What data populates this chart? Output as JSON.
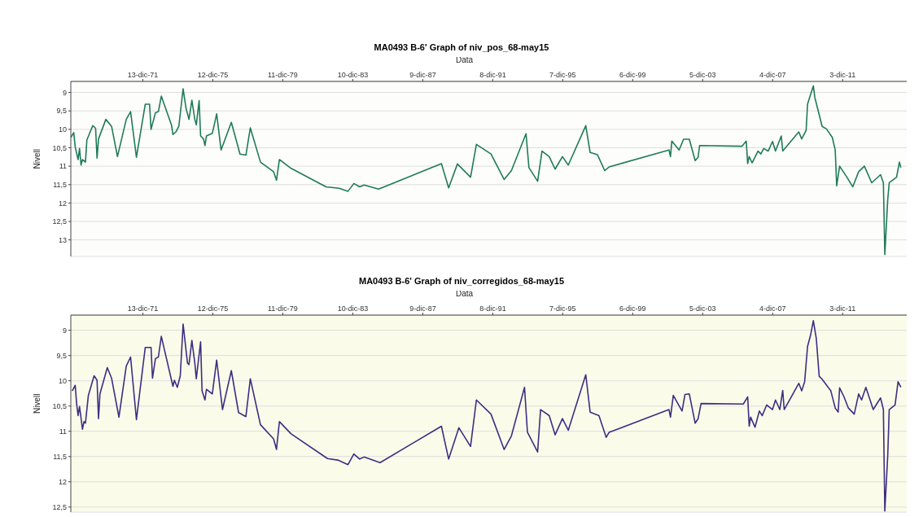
{
  "chart_data": [
    {
      "type": "line",
      "title": "MA0493 B-6' Graph of niv_pos_68-may15",
      "xlabel": "Data",
      "ylabel": "Nivell",
      "grid": "y",
      "legend": false,
      "xlim": [
        "1967-11",
        "2015-08"
      ],
      "ylim": [
        13.45,
        8.7
      ],
      "xticks": [
        {
          "value": "1971-12-13",
          "label": "13-dic-71"
        },
        {
          "value": "1975-12-12",
          "label": "12-dic-75"
        },
        {
          "value": "1979-12-11",
          "label": "11-dic-79"
        },
        {
          "value": "1983-12-10",
          "label": "10-dic-83"
        },
        {
          "value": "1987-12-09",
          "label": "9-dic-87"
        },
        {
          "value": "1991-12-08",
          "label": "8-dic-91"
        },
        {
          "value": "1995-12-07",
          "label": "7-dic-95"
        },
        {
          "value": "1999-12-06",
          "label": "6-dic-99"
        },
        {
          "value": "2003-12-05",
          "label": "5-dic-03"
        },
        {
          "value": "2007-12-04",
          "label": "4-dic-07"
        },
        {
          "value": "2011-12-03",
          "label": "3-dic-11"
        }
      ],
      "yticks": [
        9,
        {
          "value": 9.5,
          "label": "9,5"
        },
        10,
        {
          "value": 10.5,
          "label": "10,5"
        },
        11,
        {
          "value": 11.5,
          "label": "11,5"
        },
        12,
        {
          "value": 12.5,
          "label": "12,5"
        },
        13
      ],
      "series": [
        {
          "color": "#1f7a5c",
          "x": [
            "1967-11",
            "1968-01",
            "1968-02",
            "1968-04",
            "1968-05",
            "1968-06",
            "1968-07",
            "1968-09",
            "1968-10",
            "1969-02",
            "1969-04",
            "1969-05",
            "1969-06",
            "1969-11",
            "1970-03",
            "1970-07",
            "1971-01",
            "1971-04",
            "1971-08",
            "1972-02",
            "1972-05",
            "1972-06",
            "1972-09",
            "1972-11",
            "1973-01",
            "1973-08",
            "1973-09",
            "1973-11",
            "1974-01",
            "1974-04",
            "1974-06",
            "1974-08",
            "1974-10",
            "1974-12",
            "1975-01",
            "1975-03",
            "1975-04",
            "1975-06",
            "1975-07",
            "1975-08",
            "1975-12",
            "1976-03",
            "1976-06",
            "1977-01",
            "1977-07",
            "1977-11",
            "1978-02",
            "1978-09",
            "1979-06",
            "1979-08",
            "1979-10",
            "1980-06",
            "1982-06",
            "1983-03",
            "1983-09",
            "1984-01",
            "1984-05",
            "1984-08",
            "1985-06",
            "1989-01",
            "1989-06",
            "1989-12",
            "1990-09",
            "1991-01",
            "1991-11",
            "1992-08",
            "1993-01",
            "1993-11",
            "1994-01",
            "1994-07",
            "1994-10",
            "1995-03",
            "1995-07",
            "1995-12",
            "1996-04",
            "1997-04",
            "1997-07",
            "1997-12",
            "1998-05",
            "1998-08",
            "2002-01",
            "2002-02",
            "2002-03",
            "2002-08",
            "2002-11",
            "2003-03",
            "2003-07",
            "2003-09",
            "2003-10",
            "2006-03",
            "2006-06",
            "2006-07",
            "2006-08",
            "2006-10",
            "2007-02",
            "2007-04",
            "2007-06",
            "2007-09",
            "2007-12",
            "2008-02",
            "2008-06",
            "2008-07",
            "2009-06",
            "2009-08",
            "2009-11",
            "2009-12",
            "2010-02",
            "2010-04",
            "2010-05",
            "2010-10",
            "2011-01",
            "2011-05",
            "2011-07",
            "2011-08",
            "2011-10",
            "2012-03",
            "2012-07",
            "2012-11",
            "2013-03",
            "2013-08",
            "2014-02",
            "2014-04",
            "2014-05",
            "2014-07",
            "2014-08",
            "2015-01",
            "2015-03",
            "2015-04"
          ],
          "values": [
            10.22,
            10.09,
            10.48,
            10.82,
            10.52,
            10.97,
            10.82,
            10.89,
            10.29,
            9.9,
            9.97,
            10.78,
            10.26,
            9.73,
            9.92,
            10.74,
            9.73,
            9.52,
            10.76,
            9.32,
            9.32,
            10.0,
            9.55,
            9.52,
            9.1,
            9.88,
            10.14,
            10.07,
            9.92,
            8.9,
            9.43,
            9.73,
            9.21,
            9.73,
            9.88,
            9.22,
            10.18,
            10.26,
            10.44,
            10.18,
            10.11,
            9.58,
            10.56,
            9.81,
            10.67,
            10.7,
            9.96,
            10.89,
            11.15,
            11.38,
            10.82,
            11.06,
            11.56,
            11.6,
            11.68,
            11.47,
            11.56,
            11.51,
            11.62,
            10.93,
            11.59,
            10.94,
            11.3,
            10.41,
            10.67,
            11.36,
            11.12,
            10.12,
            11.04,
            11.41,
            10.59,
            10.74,
            11.08,
            10.74,
            10.97,
            9.9,
            10.63,
            10.69,
            11.12,
            11.02,
            10.56,
            10.74,
            10.32,
            10.56,
            10.27,
            10.27,
            10.85,
            10.76,
            10.44,
            10.46,
            10.32,
            10.93,
            10.74,
            10.91,
            10.59,
            10.67,
            10.52,
            10.59,
            10.33,
            10.59,
            10.18,
            10.59,
            10.07,
            10.26,
            10.03,
            9.32,
            9.06,
            8.82,
            9.13,
            9.92,
            9.99,
            10.22,
            10.56,
            11.53,
            11.0,
            11.3,
            11.56,
            11.15,
            11.0,
            11.45,
            11.23,
            11.45,
            13.4,
            11.9,
            11.45,
            11.3,
            10.89,
            11.04
          ]
        }
      ]
    },
    {
      "type": "line",
      "title": "MA0493 B-6' Graph of niv_corregidos_68-may15",
      "xlabel": "Data",
      "ylabel": "Nivell",
      "grid": "y",
      "legend": false,
      "xlim": [
        "1967-11",
        "2015-08"
      ],
      "ylim": [
        12.6,
        8.7
      ],
      "xticks": [
        {
          "value": "1971-12-13",
          "label": "13-dic-71"
        },
        {
          "value": "1975-12-12",
          "label": "12-dic-75"
        },
        {
          "value": "1979-12-11",
          "label": "11-dic-79"
        },
        {
          "value": "1983-12-10",
          "label": "10-dic-83"
        },
        {
          "value": "1987-12-09",
          "label": "9-dic-87"
        },
        {
          "value": "1991-12-08",
          "label": "8-dic-91"
        },
        {
          "value": "1995-12-07",
          "label": "7-dic-95"
        },
        {
          "value": "1999-12-06",
          "label": "6-dic-99"
        },
        {
          "value": "2003-12-05",
          "label": "5-dic-03"
        },
        {
          "value": "2007-12-04",
          "label": "4-dic-07"
        },
        {
          "value": "2011-12-03",
          "label": "3-dic-11"
        }
      ],
      "yticks": [
        9,
        {
          "value": 9.5,
          "label": "9,5"
        },
        10,
        {
          "value": 10.5,
          "label": "10,5"
        },
        11,
        {
          "value": 11.5,
          "label": "11,5"
        },
        12,
        {
          "value": 12.5,
          "label": "12,5"
        }
      ],
      "series": [
        {
          "color": "#3b2f80",
          "x": [
            "1967-12",
            "1968-02",
            "1968-03",
            "1968-04",
            "1968-05",
            "1968-07",
            "1968-08",
            "1968-09",
            "1968-11",
            "1969-03",
            "1969-05",
            "1969-06",
            "1969-07",
            "1969-12",
            "1970-03",
            "1970-08",
            "1971-01",
            "1971-04",
            "1971-08",
            "1972-02",
            "1972-06",
            "1972-07",
            "1972-09",
            "1972-11",
            "1973-01",
            "1973-09",
            "1973-10",
            "1973-12",
            "1974-02",
            "1974-04",
            "1974-07",
            "1974-08",
            "1974-10",
            "1974-12",
            "1975-01",
            "1975-04",
            "1975-05",
            "1975-07",
            "1975-08",
            "1975-12",
            "1976-03",
            "1976-07",
            "1977-01",
            "1977-06",
            "1977-11",
            "1978-02",
            "1978-09",
            "1979-06",
            "1979-08",
            "1979-10",
            "1980-06",
            "1982-07",
            "1983-02",
            "1983-09",
            "1984-01",
            "1984-05",
            "1984-08",
            "1985-07",
            "1989-01",
            "1989-06",
            "1990-01",
            "1990-09",
            "1991-01",
            "1991-11",
            "1992-08",
            "1993-01",
            "1993-10",
            "1993-12",
            "1994-07",
            "1994-09",
            "1995-03",
            "1995-07",
            "1995-12",
            "1996-04",
            "1997-04",
            "1997-07",
            "1998-01",
            "1998-06",
            "1998-08",
            "2002-01",
            "2002-02",
            "2002-04",
            "2002-10",
            "2002-12",
            "2003-03",
            "2003-07",
            "2003-09",
            "2003-11",
            "2006-04",
            "2006-07",
            "2006-08",
            "2006-09",
            "2006-12",
            "2007-03",
            "2007-05",
            "2007-08",
            "2007-12",
            "2008-02",
            "2008-05",
            "2008-07",
            "2008-08",
            "2009-06",
            "2009-08",
            "2009-10",
            "2009-12",
            "2010-02",
            "2010-04",
            "2010-06",
            "2010-08",
            "2010-10",
            "2011-04",
            "2011-07",
            "2011-09",
            "2011-10",
            "2012-01",
            "2012-04",
            "2012-08",
            "2012-11",
            "2013-01",
            "2013-04",
            "2013-09",
            "2014-02",
            "2014-04",
            "2014-05",
            "2014-07",
            "2014-08",
            "2014-12",
            "2015-02",
            "2015-04"
          ],
          "values": [
            10.2,
            10.09,
            10.45,
            10.69,
            10.51,
            10.96,
            10.81,
            10.84,
            10.29,
            9.9,
            9.99,
            10.75,
            10.26,
            9.74,
            9.95,
            10.72,
            9.71,
            9.53,
            10.77,
            9.34,
            9.34,
            9.95,
            9.56,
            9.53,
            9.12,
            10.11,
            9.99,
            10.13,
            9.9,
            8.88,
            9.65,
            9.68,
            9.2,
            9.65,
            9.96,
            9.23,
            10.2,
            10.38,
            10.17,
            10.26,
            9.59,
            10.57,
            9.8,
            10.63,
            10.71,
            9.96,
            10.87,
            11.15,
            11.36,
            10.81,
            11.05,
            11.54,
            11.57,
            11.66,
            11.45,
            11.55,
            11.51,
            11.62,
            10.9,
            11.55,
            10.93,
            11.3,
            10.38,
            10.66,
            11.36,
            11.09,
            10.13,
            11.02,
            11.41,
            10.57,
            10.69,
            11.07,
            10.75,
            10.98,
            9.88,
            10.62,
            10.69,
            11.12,
            11.02,
            10.57,
            10.72,
            10.29,
            10.6,
            10.27,
            10.26,
            10.84,
            10.75,
            10.45,
            10.46,
            10.32,
            10.9,
            10.72,
            10.92,
            10.6,
            10.69,
            10.48,
            10.57,
            10.38,
            10.57,
            10.19,
            10.57,
            10.05,
            10.2,
            10.02,
            9.32,
            9.1,
            8.81,
            9.16,
            9.91,
            9.97,
            10.2,
            10.54,
            10.62,
            10.14,
            10.32,
            10.54,
            10.66,
            10.26,
            10.38,
            10.13,
            10.57,
            10.34,
            10.57,
            12.58,
            11.48,
            10.57,
            10.48,
            10.02,
            10.13
          ]
        }
      ]
    }
  ]
}
